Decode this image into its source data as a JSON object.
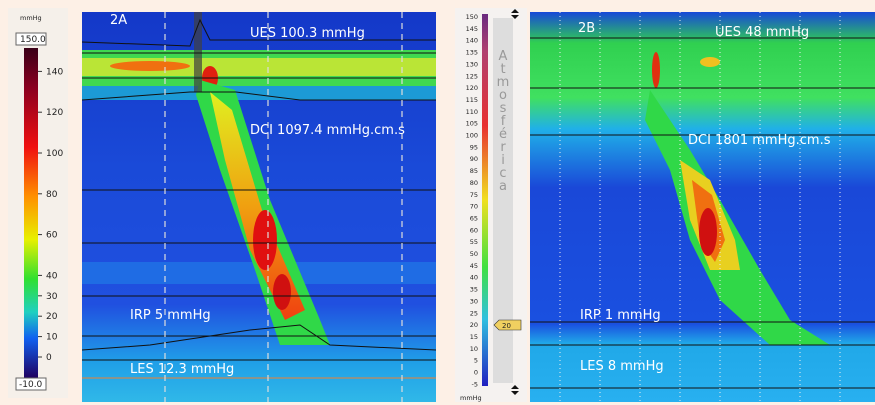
{
  "left_scale": {
    "unit": "mmHg",
    "max_label": "150.0",
    "ticks": [
      140,
      120,
      100,
      80,
      60,
      40,
      30,
      20,
      10,
      0
    ],
    "min_label": "-10.0"
  },
  "panel_a": {
    "label": "2A",
    "ues": "UES 100.3 mmHg",
    "dci": "DCI 1097.4 mmHg.cm.s",
    "irp": "IRP 5 mmHg",
    "les": "LES 12.3 mmHg"
  },
  "middle_scale": {
    "ticks": [
      150,
      145,
      140,
      135,
      130,
      125,
      120,
      115,
      110,
      105,
      100,
      95,
      90,
      85,
      80,
      75,
      70,
      65,
      60,
      55,
      50,
      45,
      40,
      35,
      30,
      25,
      20,
      15,
      10,
      5,
      0,
      -5
    ],
    "letters": [
      "A",
      "t",
      "m",
      "o",
      "s",
      "f",
      "é",
      "r",
      "i",
      "c",
      "a"
    ],
    "marker": "20",
    "unit": "mmHg"
  },
  "panel_b": {
    "label": "2B",
    "ues": "UES 48 mmHg",
    "dci": "DCI 1801 mmHg.cm.s",
    "irp": "IRP 1 mmHg",
    "les": "LES 8 mmHg"
  }
}
